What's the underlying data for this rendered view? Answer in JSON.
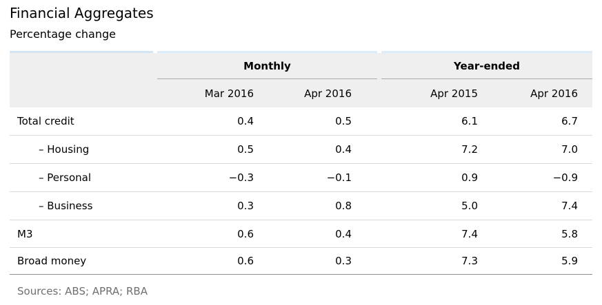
{
  "title": "Financial Aggregates",
  "subtitle": "Percentage change",
  "chart_data": {
    "type": "table",
    "column_groups": [
      {
        "label": "Monthly",
        "columns": [
          "Mar 2016",
          "Apr 2016"
        ]
      },
      {
        "label": "Year-ended",
        "columns": [
          "Apr 2015",
          "Apr 2016"
        ]
      }
    ],
    "columns": [
      "Mar 2016",
      "Apr 2016",
      "Apr 2015",
      "Apr 2016"
    ],
    "rows": [
      {
        "label": "Total credit",
        "indent": false,
        "values": [
          "0.4",
          "0.5",
          "6.1",
          "6.7"
        ]
      },
      {
        "label": "– Housing",
        "indent": true,
        "values": [
          "0.5",
          "0.4",
          "7.2",
          "7.0"
        ]
      },
      {
        "label": "– Personal",
        "indent": true,
        "values": [
          "−0.3",
          "−0.1",
          "0.9",
          "−0.9"
        ]
      },
      {
        "label": "– Business",
        "indent": true,
        "values": [
          "0.3",
          "0.8",
          "5.0",
          "7.4"
        ]
      },
      {
        "label": "M3",
        "indent": false,
        "values": [
          "0.6",
          "0.4",
          "7.4",
          "5.8"
        ]
      },
      {
        "label": "Broad money",
        "indent": false,
        "values": [
          "0.6",
          "0.3",
          "7.3",
          "5.9"
        ]
      }
    ]
  },
  "sources": "Sources: ABS; APRA; RBA",
  "colors": {
    "text_color": "#000000",
    "header_bg": "#efefef",
    "strip_label": "#d2e5f5",
    "strip_group": "#dcecf9",
    "group_rule": "#a9a9a9",
    "row_rule": "#d9d9d9",
    "bottom_rule": "#8c8c8c",
    "sources_color": "#6f6f6f"
  }
}
